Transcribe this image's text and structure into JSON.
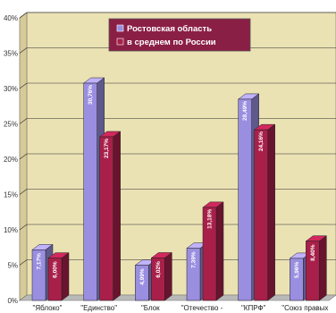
{
  "chart_data": {
    "type": "bar",
    "categories": [
      "\"Яблоко\"",
      "\"Единство\"",
      "\"Блок",
      "\"Отечество -",
      "\"КПРФ\"",
      "\"Союз правых"
    ],
    "series": [
      {
        "name": "Ростовская область",
        "values": [
          7.17,
          30.76,
          4.99,
          7.39,
          28.49,
          5.96
        ],
        "labels": [
          "7,17%",
          "30,76%",
          "4,99%",
          "7,39%",
          "28,49%",
          "5,96%"
        ],
        "color": "#9a8ee0"
      },
      {
        "name": "в среднем по России",
        "values": [
          6.0,
          23.17,
          6.02,
          13.18,
          24.16,
          8.4
        ],
        "labels": [
          "6,00%",
          "23,17%",
          "6,02%",
          "13,18%",
          "24,16%",
          "8,40%"
        ],
        "color": "#a8204a"
      }
    ],
    "ylim": [
      0,
      40
    ],
    "yticks": [
      "0%",
      "5%",
      "10%",
      "15%",
      "20%",
      "25%",
      "30%",
      "35%",
      "40%"
    ],
    "grid": true,
    "legend_position": "top-center",
    "colors": {
      "plot_background": "#ebe2b4",
      "legend_background": "#8a1f45",
      "floor": "#b9b9b9"
    }
  }
}
